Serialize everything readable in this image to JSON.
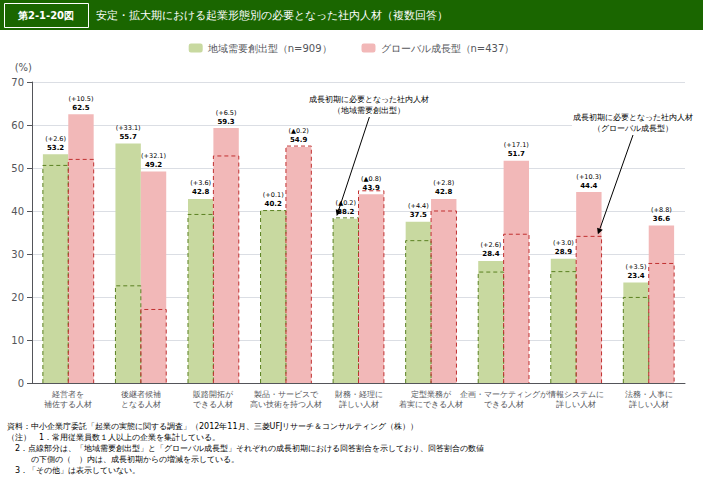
{
  "chart_data": {
    "type": "bar",
    "figure_label": "第2-1-20図",
    "title": "安定・拡大期における起業形態別の必要となった社内人材（複数回答）",
    "ylabel": "(%)",
    "categories": [
      "経営者を\n補佐する人材",
      "後継者候補\nとなる人材",
      "販路開拓が\nできる人材",
      "製品・サービスで\n高い技術を持つ人材",
      "財務・経理に\n詳しい人材",
      "定型業務が\n着実にできる人材",
      "企画・マーケティングが\nできる人材",
      "情報システムに\n詳しい人材",
      "法務・人事に\n詳しい人材"
    ],
    "series": [
      {
        "name": "地域需要創出型（n=909）",
        "color": "#c8d9a0",
        "values": [
          53.2,
          55.7,
          42.8,
          40.2,
          38.2,
          37.5,
          28.4,
          28.9,
          23.4
        ],
        "change_labels": [
          "(+2.6)",
          "(+33.1)",
          "(+3.6)",
          "(+0.1)",
          "(▲0.2)",
          "(+4.4)",
          "(+2.6)",
          "(+3.0)",
          "(+3.5)"
        ],
        "early": {
          "values": [
            50.6,
            22.6,
            39.2,
            40.1,
            38.4,
            33.1,
            25.8,
            25.9,
            19.9
          ],
          "color": "#5a8020",
          "line_style": "dashed"
        }
      },
      {
        "name": "グローバル成長型（n=437）",
        "color": "#f2b8b8",
        "values": [
          62.5,
          49.2,
          59.3,
          54.9,
          43.9,
          42.8,
          51.7,
          44.4,
          36.6
        ],
        "change_labels": [
          "(+10.5)",
          "(+32.1)",
          "(+6.5)",
          "(▲0.2)",
          "(▲0.8)",
          "(+2.8)",
          "(+17.1)",
          "(+10.3)",
          "(+8.8)"
        ],
        "early": {
          "values": [
            52.0,
            17.1,
            52.8,
            55.1,
            44.7,
            40.0,
            34.6,
            34.1,
            27.8
          ],
          "color": "#c03030",
          "line_style": "dashed"
        }
      }
    ],
    "annotations": [
      {
        "text": "成長初期に必要となった社内人材\n（地域需要創出型）",
        "series": "地域需要創出型（n=909）",
        "category": "財務・経理に\n詳しい人材"
      },
      {
        "text": "成長初期に必要となった社内人材\n（グローバル成長型）",
        "series": "グローバル成長型（n=437）",
        "category": "情報システムに\n詳しい人材"
      }
    ],
    "notes": [
      "資料：中小企業庁委託「起業の実態に関する調査」（2012年11月、三菱UFJリサーチ＆コンサルティング（株））",
      "（注）　1．常用従業員数１人以上の企業を集計している。",
      "　2．点線部分は、「地域需要創出型」と「グローバル成長型」それぞれの成長初期における回答割合を示しており、回答割合の数値",
      "　　　の下側の（　）内は、成長初期からの増減を示している。",
      "　3．「その他」は表示していない。"
    ],
    "ylim": [
      0,
      70
    ],
    "yticks": [
      0,
      10,
      20,
      30,
      40,
      50,
      60,
      70
    ],
    "grid": true,
    "legend": "top",
    "data_labels": true
  }
}
